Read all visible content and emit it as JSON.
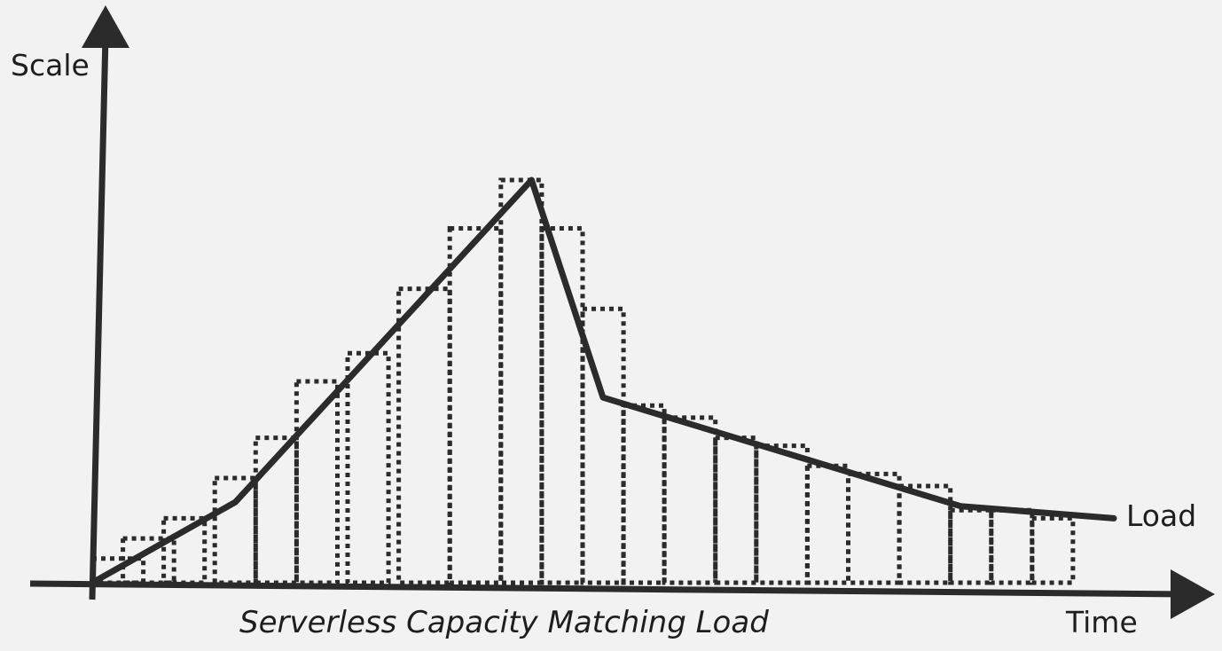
{
  "labels": {
    "y_axis": "Scale",
    "x_axis": "Time",
    "load_series": "Load",
    "caption": "Serverless Capacity Matching Load"
  },
  "colors": {
    "background": "#f2f2f2",
    "ink": "#2b2b2b"
  },
  "chart_data": {
    "type": "line",
    "description_free": true,
    "load_points": [
      {
        "t": 0.0,
        "v": 0.0
      },
      {
        "t": 0.14,
        "v": 0.2
      },
      {
        "t": 0.43,
        "v": 1.0
      },
      {
        "t": 0.5,
        "v": 0.46
      },
      {
        "t": 0.85,
        "v": 0.19
      },
      {
        "t": 1.0,
        "v": 0.16
      }
    ],
    "capacity_steps": [
      {
        "t0": 0.0,
        "t1": 0.05,
        "v": 0.06
      },
      {
        "t0": 0.03,
        "t1": 0.08,
        "v": 0.11
      },
      {
        "t0": 0.07,
        "t1": 0.11,
        "v": 0.16
      },
      {
        "t0": 0.12,
        "t1": 0.16,
        "v": 0.26
      },
      {
        "t0": 0.16,
        "t1": 0.2,
        "v": 0.36
      },
      {
        "t0": 0.2,
        "t1": 0.24,
        "v": 0.5
      },
      {
        "t0": 0.25,
        "t1": 0.29,
        "v": 0.57
      },
      {
        "t0": 0.3,
        "t1": 0.35,
        "v": 0.73
      },
      {
        "t0": 0.35,
        "t1": 0.4,
        "v": 0.88
      },
      {
        "t0": 0.4,
        "t1": 0.44,
        "v": 1.0
      },
      {
        "t0": 0.44,
        "t1": 0.48,
        "v": 0.88
      },
      {
        "t0": 0.48,
        "t1": 0.52,
        "v": 0.68
      },
      {
        "t0": 0.52,
        "t1": 0.56,
        "v": 0.44
      },
      {
        "t0": 0.56,
        "t1": 0.61,
        "v": 0.41
      },
      {
        "t0": 0.61,
        "t1": 0.65,
        "v": 0.36
      },
      {
        "t0": 0.65,
        "t1": 0.7,
        "v": 0.34
      },
      {
        "t0": 0.7,
        "t1": 0.74,
        "v": 0.29
      },
      {
        "t0": 0.74,
        "t1": 0.79,
        "v": 0.27
      },
      {
        "t0": 0.79,
        "t1": 0.84,
        "v": 0.24
      },
      {
        "t0": 0.84,
        "t1": 0.88,
        "v": 0.18
      },
      {
        "t0": 0.88,
        "t1": 0.92,
        "v": 0.18
      },
      {
        "t0": 0.92,
        "t1": 0.96,
        "v": 0.16
      }
    ]
  }
}
